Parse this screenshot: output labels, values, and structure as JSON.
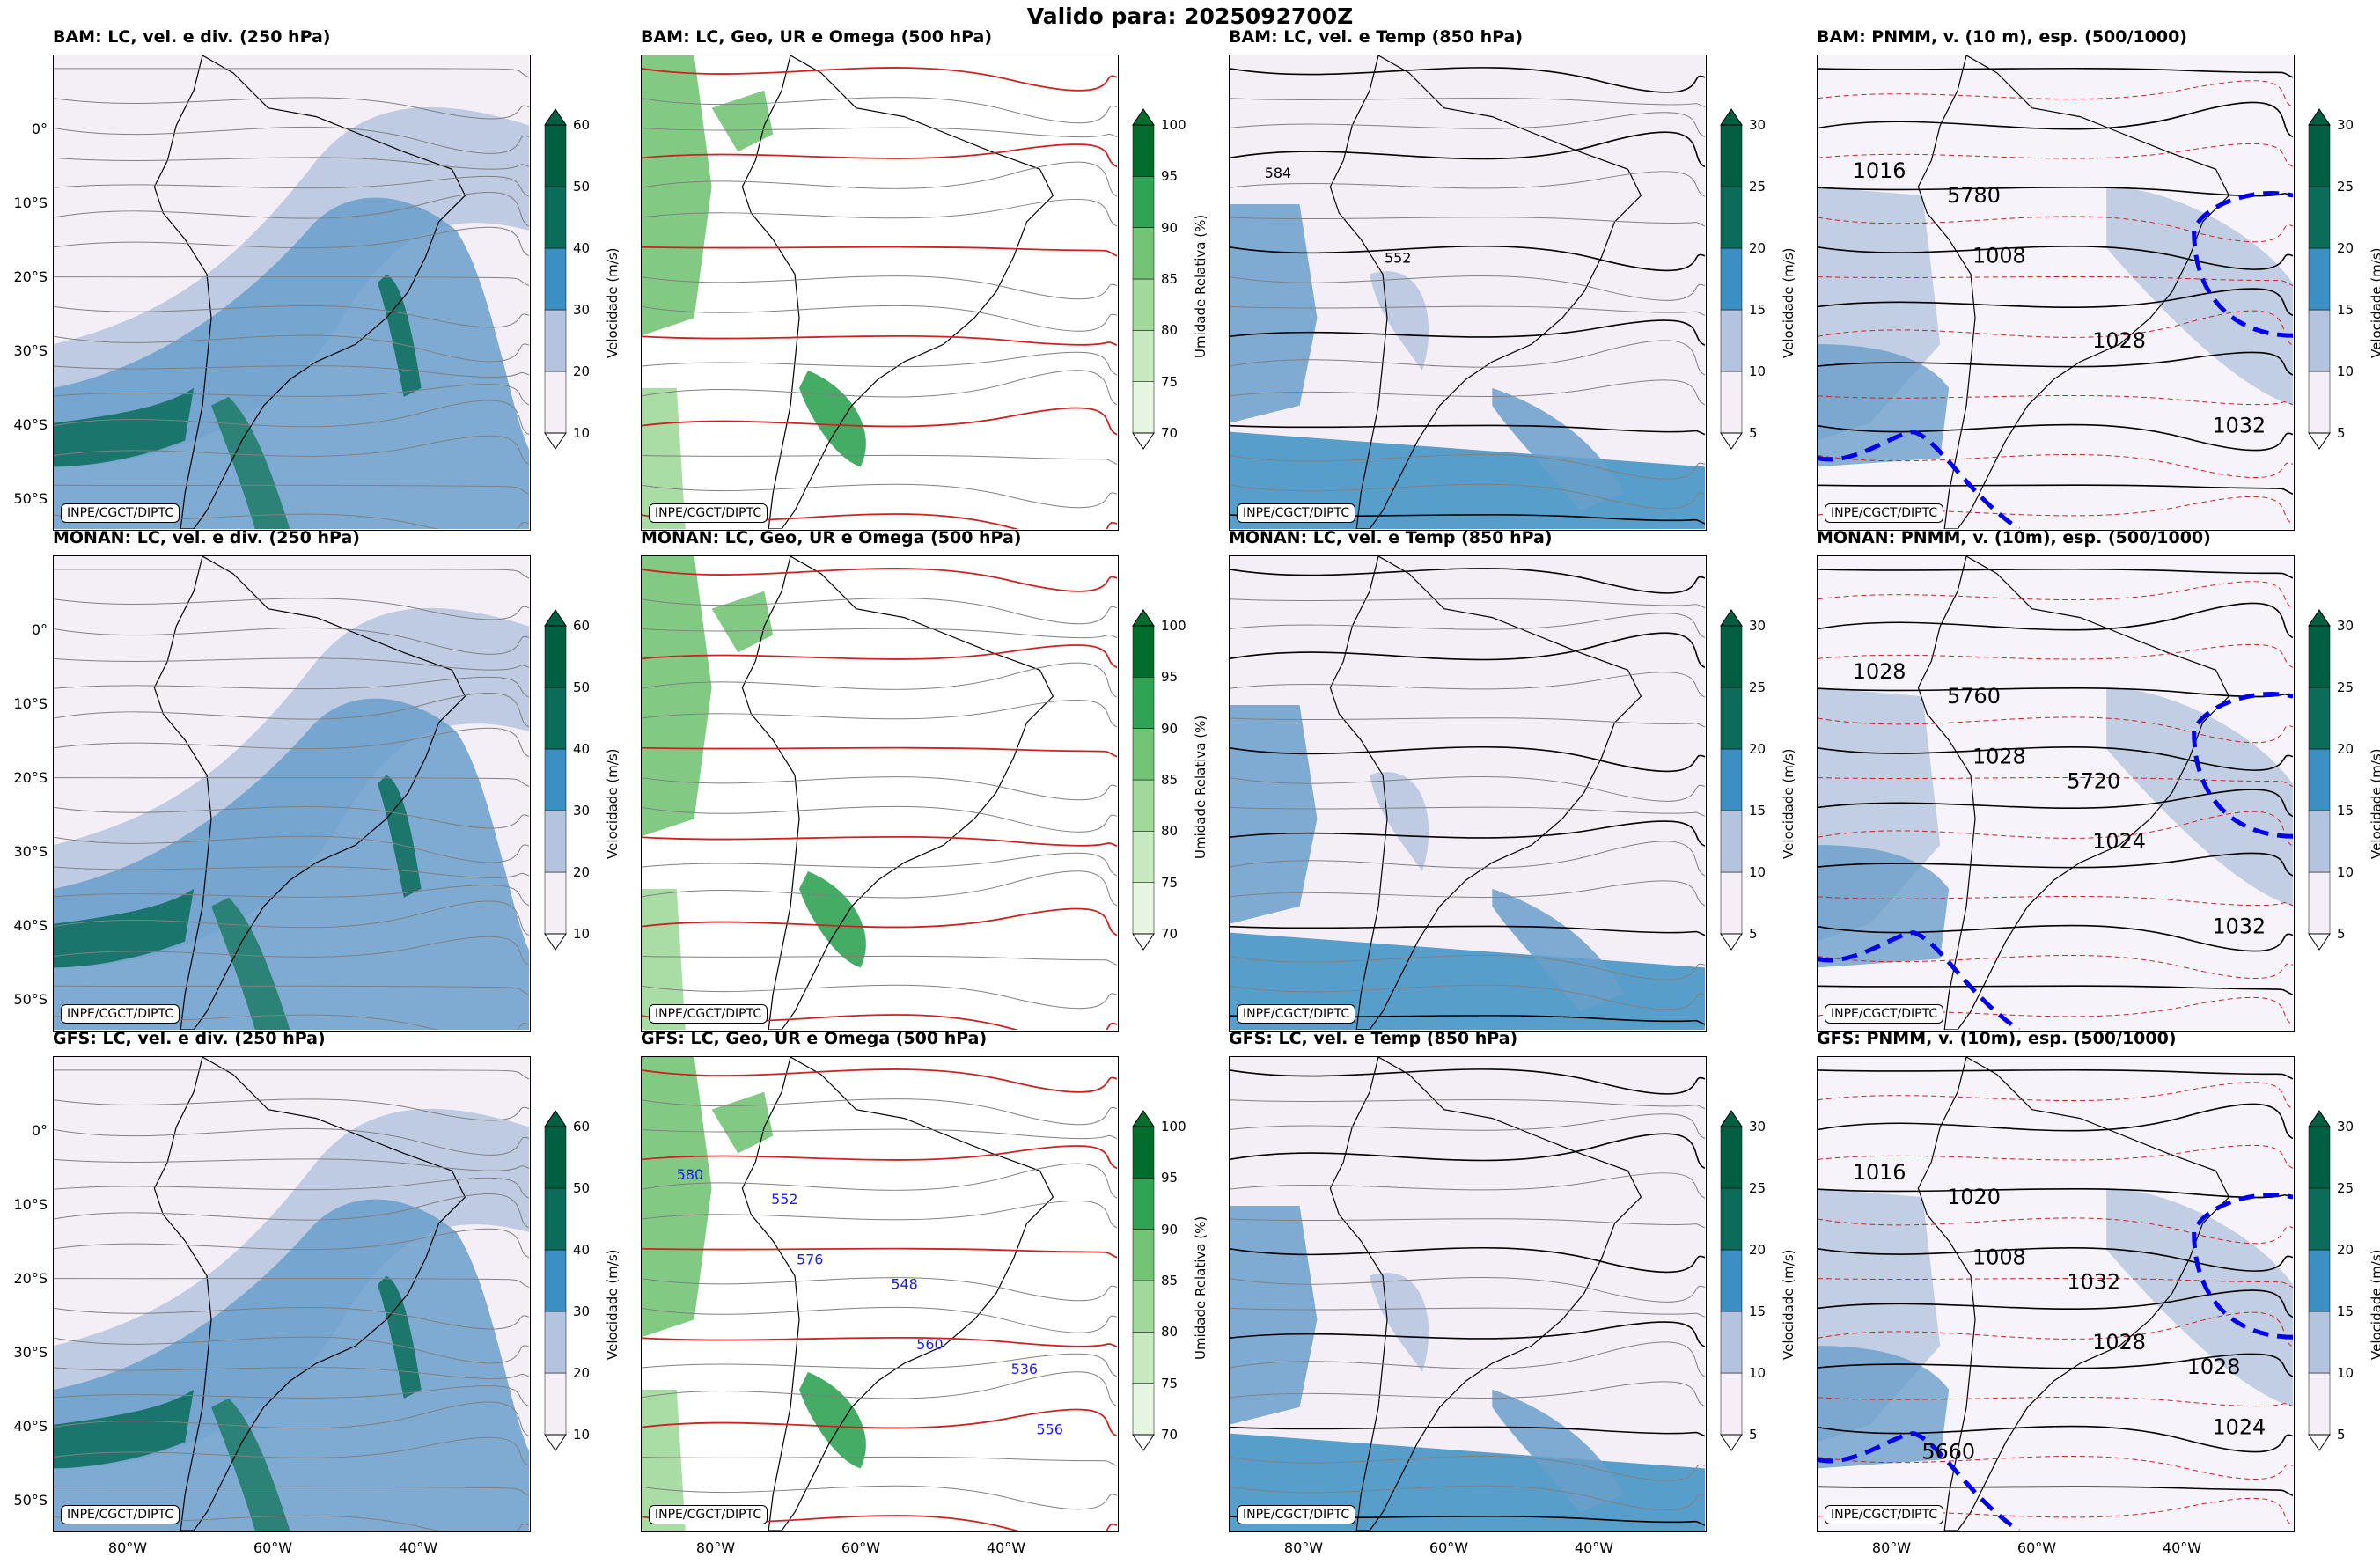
{
  "title": "Valido para: 2025092700Z",
  "credit": "INPE/CGCT/DIPTC",
  "lat_labels": [
    "0°",
    "10°S",
    "20°S",
    "30°S",
    "40°S",
    "50°S"
  ],
  "lon_labels": [
    "80°W",
    "60°W",
    "40°W"
  ],
  "colorbars": {
    "vel250": {
      "label": "Velocidade (m/s)",
      "ticks": [
        "60",
        "50",
        "40",
        "30",
        "20",
        "10"
      ],
      "colors": [
        "#f4eef6",
        "#b4c4de",
        "#3c8fc2",
        "#0b6c5a",
        "#005f40"
      ]
    },
    "ur500": {
      "label": "Umidade Relativa (%)",
      "ticks": [
        "100",
        "95",
        "90",
        "85",
        "80",
        "75",
        "70"
      ],
      "colors": [
        "#e5f5e0",
        "#c7e9c0",
        "#a1d99b",
        "#74c476",
        "#31a354",
        "#006d2c"
      ]
    },
    "vel850": {
      "label": "Velocidade (m/s)",
      "ticks": [
        "30",
        "25",
        "20",
        "15",
        "10",
        "5"
      ],
      "colors": [
        "#f4eef6",
        "#b4c4de",
        "#3c8fc2",
        "#0b6c5a",
        "#005f40"
      ]
    },
    "pnmm": {
      "label": "Velocidade (m/s)",
      "ticks": [
        "30",
        "25",
        "20",
        "15",
        "10",
        "5"
      ],
      "colors": [
        "#f4eef6",
        "#b4c4de",
        "#3c8fc2",
        "#0b6c5a",
        "#005f40"
      ]
    }
  },
  "rows": [
    {
      "model": "BAM",
      "titles": [
        "BAM: LC, vel. e div. (250 hPa)",
        "BAM: LC, Geo, UR e Omega (500 hPa)",
        "BAM: LC, vel. e Temp (850 hPa)",
        "BAM: PNMM, v. (10 m), esp. (500/1000)"
      ]
    },
    {
      "model": "MONAN",
      "titles": [
        "MONAN: LC, vel. e div. (250 hPa)",
        "MONAN: LC, Geo, UR e Omega (500 hPa)",
        "MONAN: LC, vel. e Temp (850 hPa)",
        "MONAN: PNMM, v. (10m), esp. (500/1000)"
      ]
    },
    {
      "model": "GFS",
      "titles": [
        "GFS: LC, vel. e div. (250 hPa)",
        "GFS: LC, Geo, UR e Omega (500 hPa)",
        "GFS: LC, vel. e Temp (850 hPa)",
        "GFS: PNMM, v. (10m), esp. (500/1000)"
      ]
    }
  ],
  "contour_labels": {
    "p2r0": [
      "584",
      "552"
    ],
    "p3r0": [
      "1016",
      "1008",
      "1028",
      "1032",
      "5780"
    ],
    "p3r1": [
      "1028",
      "1028",
      "1024",
      "1032",
      "5760",
      "5720"
    ],
    "p1r2": [
      "580",
      "576",
      "560",
      "556",
      "552",
      "548",
      "536"
    ],
    "p3r2": [
      "1016",
      "1008",
      "1028",
      "1024",
      "1020",
      "1032",
      "1028",
      "5660"
    ]
  }
}
